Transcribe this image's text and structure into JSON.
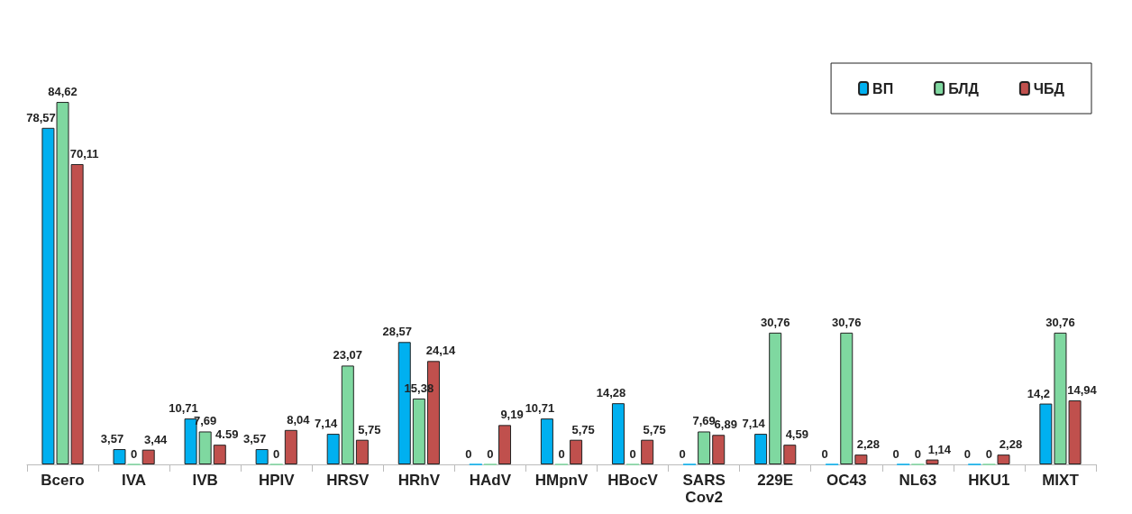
{
  "chart_data": {
    "type": "bar",
    "categories": [
      "Всего",
      "IVA",
      "IVB",
      "HPIV",
      "HRSV",
      "HRhV",
      "HAdV",
      "HMpnV",
      "HBocV",
      "SARS Cov2",
      "229E",
      "OC43",
      "NL63",
      "HKU1",
      "MIXT"
    ],
    "series": [
      {
        "name": "ВП",
        "color": "#00b0f0",
        "values": [
          78.57,
          3.57,
          10.71,
          3.57,
          7.14,
          28.57,
          0,
          10.71,
          14.28,
          0,
          7.14,
          0,
          0,
          0,
          14.2
        ],
        "value_labels": [
          "78,57",
          "3,57",
          "10,71",
          "3,57",
          "7,14",
          "28,57",
          "0",
          "10,71",
          "14,28",
          "0",
          "7,14",
          "0",
          "0",
          "0",
          "14,2"
        ]
      },
      {
        "name": "БЛД",
        "color": "#7fd8a0",
        "values": [
          84.62,
          0,
          7.69,
          0,
          23.07,
          15.38,
          0,
          0,
          0,
          7.69,
          30.76,
          30.76,
          0,
          0,
          30.76
        ],
        "value_labels": [
          "84,62",
          "0",
          "7,69",
          "0",
          "23,07",
          "15,38",
          "0",
          "0",
          "0",
          "7,69",
          "30,76",
          "30,76",
          "0",
          "0",
          "30,76"
        ]
      },
      {
        "name": "ЧБД",
        "color": "#c0504d",
        "values": [
          70.11,
          3.44,
          4.59,
          8.04,
          5.75,
          24.14,
          9.19,
          5.75,
          5.75,
          6.89,
          4.59,
          2.28,
          1.14,
          2.28,
          14.94
        ],
        "value_labels": [
          "70,11",
          "3,44",
          "4.59",
          "8,04",
          "5,75",
          "24,14",
          "9,19",
          "5,75",
          "5,75",
          "6,89",
          "4,59",
          "2,28",
          "1,14",
          "2,28",
          "14,94"
        ]
      }
    ],
    "legend": "top right"
  }
}
